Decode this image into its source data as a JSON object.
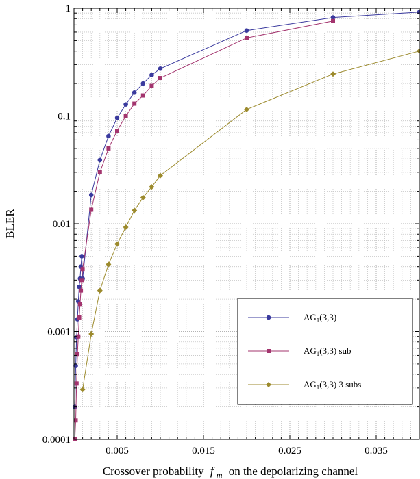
{
  "chart_data": {
    "type": "line",
    "title": "",
    "xlabel": "Crossover probability",
    "xlabel_symbol": "f",
    "xlabel_subscript": "m",
    "xlabel_suffix": "on the depolarizing channel",
    "ylabel": "BLER",
    "xlim": [
      0,
      0.04
    ],
    "ylim": [
      0.0001,
      1
    ],
    "yscale": "log",
    "grid": true,
    "x_ticks": [
      0.005,
      0.015,
      0.025,
      0.035
    ],
    "x_tick_labels": [
      "0.005",
      "0.015",
      "0.025",
      "0.035"
    ],
    "y_ticks": [
      0.0001,
      0.001,
      0.01,
      0.1,
      1
    ],
    "y_tick_labels": [
      "0.0001",
      "0.001",
      "0.01",
      "0.1",
      "1"
    ],
    "legend_position": "bottom-right",
    "series": [
      {
        "name": "AG1(3,3)",
        "name_base": "AG",
        "name_sub": "1",
        "name_rest": "(3,3)",
        "color": "#3a3a9e",
        "marker": "circle",
        "x": [
          0.0001,
          0.0002,
          0.0003,
          0.0004,
          0.0005,
          0.0006,
          0.0007,
          0.0008,
          0.0009,
          0.001,
          0.002,
          0.003,
          0.004,
          0.005,
          0.006,
          0.007,
          0.008,
          0.009,
          0.01,
          0.02,
          0.03,
          0.04
        ],
        "y": [
          0.0002,
          0.00048,
          0.00088,
          0.0013,
          0.0019,
          0.0026,
          0.0031,
          0.004,
          0.005,
          0.0031,
          0.0185,
          0.039,
          0.065,
          0.096,
          0.128,
          0.165,
          0.2,
          0.24,
          0.275,
          0.62,
          0.82,
          0.92
        ]
      },
      {
        "name": "AG1(3,3) sub",
        "name_base": "AG",
        "name_sub": "1",
        "name_rest": "(3,3) sub",
        "color": "#a3346e",
        "marker": "square",
        "x": [
          0.0001,
          0.0002,
          0.0003,
          0.0004,
          0.0005,
          0.0006,
          0.0007,
          0.0008,
          0.0009,
          0.001,
          0.002,
          0.003,
          0.004,
          0.005,
          0.006,
          0.007,
          0.008,
          0.009,
          0.01,
          0.02,
          0.03
        ],
        "y": [
          0.0001,
          0.00015,
          0.00033,
          0.00062,
          0.0009,
          0.00135,
          0.0018,
          0.0024,
          0.003,
          0.0038,
          0.0135,
          0.03,
          0.05,
          0.073,
          0.1,
          0.13,
          0.155,
          0.19,
          0.225,
          0.53,
          0.76
        ]
      },
      {
        "name": "AG1(3,3) 3 subs",
        "name_base": "AG",
        "name_sub": "1",
        "name_rest": "(3,3) 3 subs",
        "color": "#9c8a2c",
        "marker": "diamond",
        "x": [
          0.001,
          0.002,
          0.003,
          0.004,
          0.005,
          0.006,
          0.007,
          0.008,
          0.009,
          0.01,
          0.02,
          0.03,
          0.04
        ],
        "y": [
          0.00029,
          0.00095,
          0.0024,
          0.0042,
          0.0065,
          0.0093,
          0.0133,
          0.0175,
          0.022,
          0.028,
          0.115,
          0.245,
          0.4
        ]
      }
    ]
  }
}
